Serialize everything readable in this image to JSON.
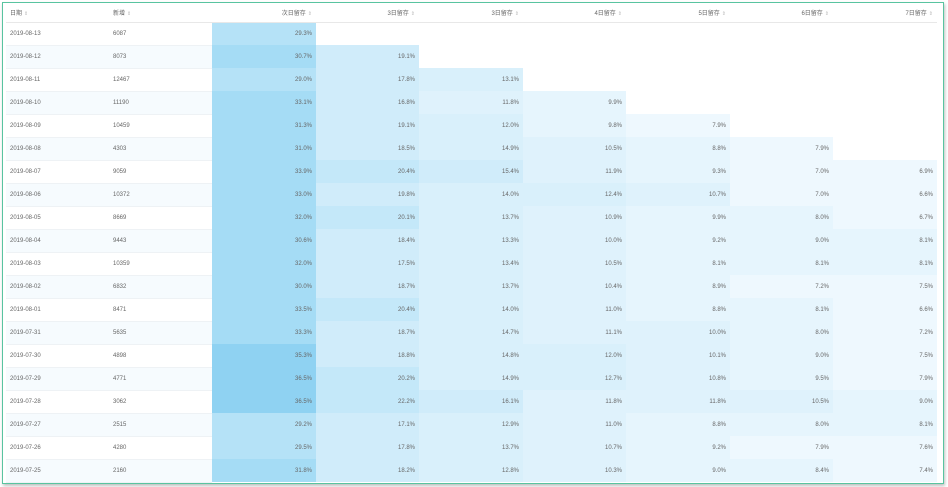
{
  "table": {
    "columns": [
      "日期",
      "新增",
      "次日留存",
      "3日留存",
      "3日留存",
      "4日留存",
      "5日留存",
      "6日留存",
      "7日留存"
    ],
    "sort_icon": "sort-icon",
    "rows": [
      {
        "date": "2019-08-13",
        "users": "6087",
        "cells": [
          "29.3%",
          "",
          "",
          "",
          "",
          "",
          ""
        ]
      },
      {
        "date": "2019-08-12",
        "users": "8073",
        "cells": [
          "30.7%",
          "19.1%",
          "",
          "",
          "",
          "",
          ""
        ]
      },
      {
        "date": "2019-08-11",
        "users": "12467",
        "cells": [
          "29.0%",
          "17.8%",
          "13.1%",
          "",
          "",
          "",
          ""
        ]
      },
      {
        "date": "2019-08-10",
        "users": "11190",
        "cells": [
          "33.1%",
          "16.8%",
          "11.8%",
          "9.9%",
          "",
          "",
          ""
        ]
      },
      {
        "date": "2019-08-09",
        "users": "10459",
        "cells": [
          "31.3%",
          "19.1%",
          "12.0%",
          "9.8%",
          "7.9%",
          "",
          ""
        ]
      },
      {
        "date": "2019-08-08",
        "users": "4303",
        "cells": [
          "31.0%",
          "18.5%",
          "14.9%",
          "10.5%",
          "8.8%",
          "7.9%",
          ""
        ]
      },
      {
        "date": "2019-08-07",
        "users": "9059",
        "cells": [
          "33.9%",
          "20.4%",
          "15.4%",
          "11.9%",
          "9.3%",
          "7.0%",
          "6.9%"
        ]
      },
      {
        "date": "2019-08-06",
        "users": "10372",
        "cells": [
          "33.0%",
          "19.8%",
          "14.0%",
          "12.4%",
          "10.7%",
          "7.0%",
          "6.6%"
        ]
      },
      {
        "date": "2019-08-05",
        "users": "8669",
        "cells": [
          "32.0%",
          "20.1%",
          "13.7%",
          "10.9%",
          "9.9%",
          "8.0%",
          "6.7%"
        ]
      },
      {
        "date": "2019-08-04",
        "users": "9443",
        "cells": [
          "30.6%",
          "18.4%",
          "13.3%",
          "10.0%",
          "9.2%",
          "9.0%",
          "8.1%"
        ]
      },
      {
        "date": "2019-08-03",
        "users": "10359",
        "cells": [
          "32.0%",
          "17.5%",
          "13.4%",
          "10.5%",
          "8.1%",
          "8.1%",
          "8.1%"
        ]
      },
      {
        "date": "2019-08-02",
        "users": "6832",
        "cells": [
          "30.0%",
          "18.7%",
          "13.7%",
          "10.4%",
          "8.9%",
          "7.2%",
          "7.5%"
        ]
      },
      {
        "date": "2019-08-01",
        "users": "8471",
        "cells": [
          "33.5%",
          "20.4%",
          "14.0%",
          "11.0%",
          "8.8%",
          "8.1%",
          "6.6%"
        ]
      },
      {
        "date": "2019-07-31",
        "users": "5635",
        "cells": [
          "33.3%",
          "18.7%",
          "14.7%",
          "11.1%",
          "10.0%",
          "8.0%",
          "7.2%"
        ]
      },
      {
        "date": "2019-07-30",
        "users": "4898",
        "cells": [
          "35.3%",
          "18.8%",
          "14.8%",
          "12.0%",
          "10.1%",
          "9.0%",
          "7.5%"
        ]
      },
      {
        "date": "2019-07-29",
        "users": "4771",
        "cells": [
          "36.5%",
          "20.2%",
          "14.9%",
          "12.7%",
          "10.8%",
          "9.5%",
          "7.9%"
        ]
      },
      {
        "date": "2019-07-28",
        "users": "3062",
        "cells": [
          "36.5%",
          "22.2%",
          "16.1%",
          "11.8%",
          "11.8%",
          "10.5%",
          "9.0%"
        ]
      },
      {
        "date": "2019-07-27",
        "users": "2515",
        "cells": [
          "29.2%",
          "17.1%",
          "12.9%",
          "11.0%",
          "8.8%",
          "8.0%",
          "8.1%"
        ]
      },
      {
        "date": "2019-07-26",
        "users": "4280",
        "cells": [
          "29.5%",
          "17.8%",
          "13.7%",
          "10.7%",
          "9.2%",
          "7.9%",
          "7.6%"
        ]
      },
      {
        "date": "2019-07-25",
        "users": "2160",
        "cells": [
          "31.8%",
          "18.2%",
          "12.8%",
          "10.3%",
          "9.0%",
          "8.4%",
          "7.4%"
        ]
      }
    ]
  },
  "heat_colors": {
    "high": "#8fd2f2",
    "mid": "#b5e2f7",
    "low": "#d6effb",
    "lowest": "#e8f6fd",
    "zebra": "#f6fbfe"
  }
}
